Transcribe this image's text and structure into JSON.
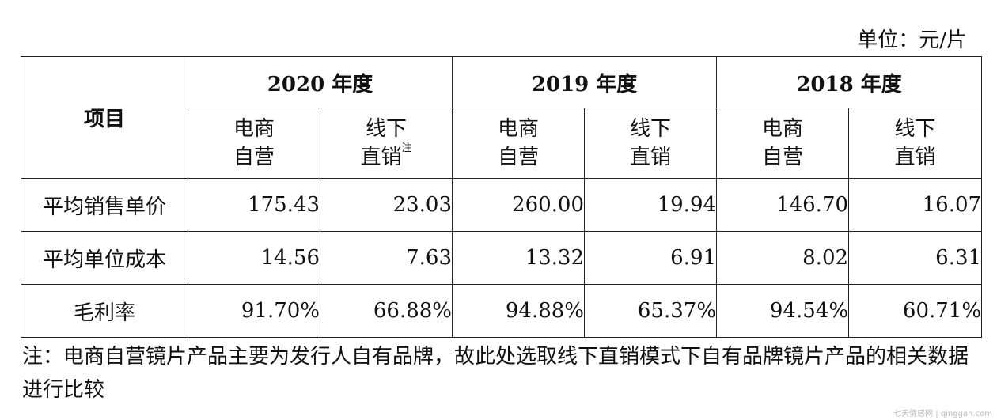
{
  "unit_label": "单位：元/片",
  "table": {
    "item_header": "项目",
    "years": [
      "2020 年度",
      "2019 年度",
      "2018 年度"
    ],
    "sub_headers": [
      {
        "line1": "电商",
        "line2": "自营",
        "note": ""
      },
      {
        "line1": "线下",
        "line2": "直销",
        "note": "注"
      },
      {
        "line1": "电商",
        "line2": "自营",
        "note": ""
      },
      {
        "line1": "线下",
        "line2": "直销",
        "note": ""
      },
      {
        "line1": "电商",
        "line2": "自营",
        "note": ""
      },
      {
        "line1": "线下",
        "line2": "直销",
        "note": ""
      }
    ],
    "rows": [
      {
        "label": "平均销售单价",
        "values": [
          "175.43",
          "23.03",
          "260.00",
          "19.94",
          "146.70",
          "16.07"
        ]
      },
      {
        "label": "平均单位成本",
        "values": [
          "14.56",
          "7.63",
          "13.32",
          "6.91",
          "8.02",
          "6.31"
        ]
      },
      {
        "label": "毛利率",
        "values": [
          "91.70%",
          "66.88%",
          "94.88%",
          "65.37%",
          "94.54%",
          "60.71%"
        ]
      }
    ]
  },
  "note_text": "注：电商自营镜片产品主要为发行人自有品牌，故此处选取线下直销模式下自有品牌镜片产品的相关数据进行比较",
  "watermark": "七天情感网 | qinggan.com"
}
